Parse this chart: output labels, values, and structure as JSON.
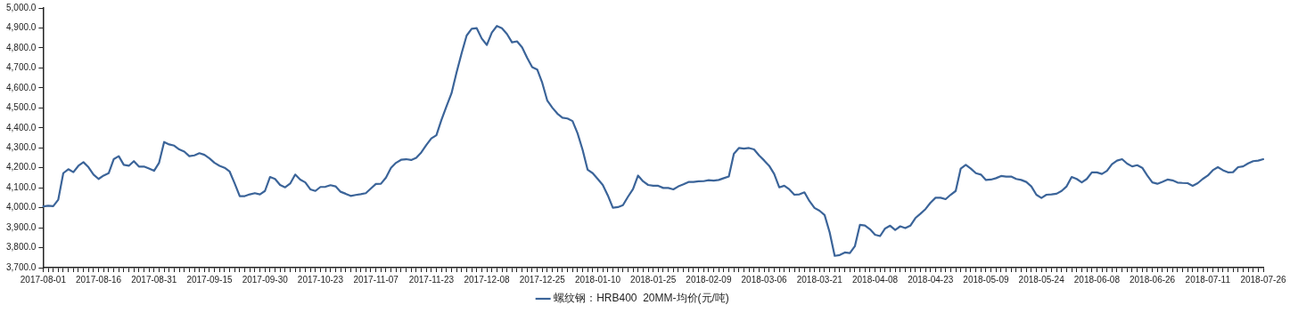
{
  "chart_data": {
    "type": "line",
    "categories": [
      "2017-08-01",
      null,
      null,
      null,
      null,
      null,
      null,
      null,
      null,
      null,
      null,
      "2017-08-16",
      null,
      null,
      null,
      null,
      null,
      null,
      null,
      null,
      null,
      null,
      "2017-08-31",
      null,
      null,
      null,
      null,
      null,
      null,
      null,
      null,
      null,
      null,
      "2017-09-15",
      null,
      null,
      null,
      null,
      null,
      null,
      null,
      null,
      null,
      null,
      "2017-09-30",
      null,
      null,
      null,
      null,
      null,
      null,
      null,
      null,
      null,
      null,
      "2017-10-23",
      null,
      null,
      null,
      null,
      null,
      null,
      null,
      null,
      null,
      null,
      "2017-11-07",
      null,
      null,
      null,
      null,
      null,
      null,
      null,
      null,
      null,
      null,
      "2017-11-23",
      null,
      null,
      null,
      null,
      null,
      null,
      null,
      null,
      null,
      null,
      "2017-12-08",
      null,
      null,
      null,
      null,
      null,
      null,
      null,
      null,
      null,
      null,
      "2017-12-25",
      null,
      null,
      null,
      null,
      null,
      null,
      null,
      null,
      null,
      null,
      "2018-01-10",
      null,
      null,
      null,
      null,
      null,
      null,
      null,
      null,
      null,
      null,
      "2018-01-25",
      null,
      null,
      null,
      null,
      null,
      null,
      null,
      null,
      null,
      null,
      "2018-02-09",
      null,
      null,
      null,
      null,
      null,
      null,
      null,
      null,
      null,
      null,
      "2018-03-06",
      null,
      null,
      null,
      null,
      null,
      null,
      null,
      null,
      null,
      null,
      "2018-03-21",
      null,
      null,
      null,
      null,
      null,
      null,
      null,
      null,
      null,
      null,
      "2018-04-08",
      null,
      null,
      null,
      null,
      null,
      null,
      null,
      null,
      null,
      null,
      "2018-04-23",
      null,
      null,
      null,
      null,
      null,
      null,
      null,
      null,
      null,
      null,
      "2018-05-09",
      null,
      null,
      null,
      null,
      null,
      null,
      null,
      null,
      null,
      null,
      "2018-05-24",
      null,
      null,
      null,
      null,
      null,
      null,
      null,
      null,
      null,
      null,
      "2018-06-08",
      null,
      null,
      null,
      null,
      null,
      null,
      null,
      null,
      null,
      null,
      "2018-06-26",
      null,
      null,
      null,
      null,
      null,
      null,
      null,
      null,
      null,
      null,
      "2018-07-11",
      null,
      null,
      null,
      null,
      null,
      null,
      null,
      null,
      null,
      null,
      "2018-07-26"
    ],
    "series": [
      {
        "name": "螺纹钢：HRB400  20MM-均价(元/吨)",
        "color": "#3b6499",
        "values": [
          4007,
          4010,
          4008,
          4040,
          4173,
          4193,
          4178,
          4210,
          4228,
          4203,
          4166,
          4144,
          4161,
          4173,
          4243,
          4258,
          4215,
          4210,
          4233,
          4206,
          4206,
          4196,
          4185,
          4225,
          4329,
          4317,
          4311,
          4292,
          4281,
          4258,
          4262,
          4273,
          4265,
          4247,
          4225,
          4210,
          4200,
          4181,
          4121,
          4058,
          4058,
          4067,
          4073,
          4067,
          4084,
          4154,
          4144,
          4114,
          4102,
          4121,
          4166,
          4141,
          4127,
          4092,
          4084,
          4104,
          4105,
          4113,
          4107,
          4080,
          4070,
          4059,
          4064,
          4068,
          4073,
          4096,
          4119,
          4120,
          4151,
          4200,
          4225,
          4240,
          4243,
          4239,
          4250,
          4277,
          4314,
          4347,
          4363,
          4440,
          4507,
          4573,
          4677,
          4773,
          4862,
          4896,
          4899,
          4847,
          4815,
          4877,
          4910,
          4899,
          4870,
          4828,
          4833,
          4803,
          4751,
          4704,
          4692,
          4625,
          4536,
          4501,
          4471,
          4451,
          4447,
          4434,
          4373,
          4290,
          4190,
          4173,
          4144,
          4114,
          4062,
          4000,
          4003,
          4013,
          4055,
          4093,
          4161,
          4132,
          4114,
          4110,
          4110,
          4099,
          4099,
          4092,
          4107,
          4117,
          4129,
          4129,
          4132,
          4133,
          4138,
          4136,
          4139,
          4148,
          4156,
          4270,
          4299,
          4296,
          4299,
          4292,
          4262,
          4237,
          4210,
          4169,
          4102,
          4110,
          4092,
          4065,
          4067,
          4077,
          4033,
          3999,
          3985,
          3963,
          3877,
          3759,
          3763,
          3776,
          3773,
          3807,
          3914,
          3911,
          3892,
          3865,
          3858,
          3896,
          3910,
          3889,
          3907,
          3898,
          3910,
          3948,
          3970,
          3993,
          4025,
          4050,
          4050,
          4043,
          4065,
          4084,
          4196,
          4215,
          4196,
          4173,
          4166,
          4139,
          4141,
          4148,
          4159,
          4156,
          4156,
          4144,
          4139,
          4129,
          4107,
          4065,
          4049,
          4065,
          4067,
          4070,
          4084,
          4107,
          4154,
          4144,
          4127,
          4144,
          4177,
          4177,
          4169,
          4185,
          4218,
          4236,
          4243,
          4221,
          4207,
          4213,
          4200,
          4161,
          4127,
          4120,
          4130,
          4141,
          4137,
          4126,
          4124,
          4123,
          4110,
          4123,
          4144,
          4161,
          4188,
          4203,
          4188,
          4177,
          4178,
          4203,
          4207,
          4222,
          4233,
          4236,
          4243
        ]
      }
    ],
    "ylim": [
      3700,
      5000
    ],
    "yticks": [
      {
        "value": 3700,
        "label": "3,700.0"
      },
      {
        "value": 3800,
        "label": "3,800.0"
      },
      {
        "value": 3900,
        "label": "3,900.0"
      },
      {
        "value": 4000,
        "label": "4,000.0"
      },
      {
        "value": 4100,
        "label": "4,100.0"
      },
      {
        "value": 4200,
        "label": "4,200.0"
      },
      {
        "value": 4300,
        "label": "4,300.0"
      },
      {
        "value": 4400,
        "label": "4,400.0"
      },
      {
        "value": 4500,
        "label": "4,500.0"
      },
      {
        "value": 4600,
        "label": "4,600.0"
      },
      {
        "value": 4700,
        "label": "4,700.0"
      },
      {
        "value": 4800,
        "label": "4,800.0"
      },
      {
        "value": 4900,
        "label": "4,900.0"
      },
      {
        "value": 5000,
        "label": "5,000.0"
      }
    ],
    "grid": false,
    "legend": "bottom",
    "marker": "none",
    "line_style": "solid"
  }
}
